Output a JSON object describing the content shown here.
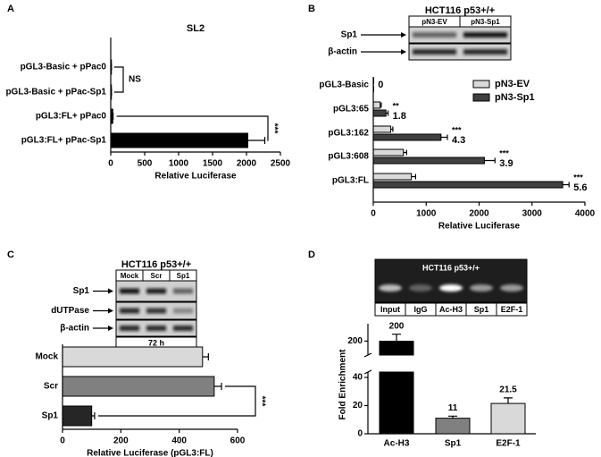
{
  "chart_data": [
    {
      "panel": "A",
      "type": "hbar",
      "title": "SL2",
      "categories": [
        "pGL3-Basic + pPac0",
        "pGL3-Basic + pPac-Sp1",
        "pGL3:FL+ pPac0",
        "pGL3:FL+ pPac-Sp1"
      ],
      "values": [
        10,
        10,
        30,
        2020
      ],
      "errors": [
        0,
        0,
        5,
        250
      ],
      "color": "#000000",
      "xlabel": "Relative Luciferase",
      "xlim": [
        0,
        2500
      ],
      "xticks": [
        0,
        500,
        1000,
        1500,
        2000,
        2500
      ],
      "ns_label": "NS",
      "sig_label": "***"
    },
    {
      "panel": "B",
      "type": "grouped-hbar",
      "blot": {
        "title": "HCT116 p53+/+",
        "lanes": [
          "pN3-EV",
          "pN3-Sp1"
        ],
        "rows": [
          "Sp1",
          "β-actin"
        ]
      },
      "categories": [
        "pGL3-Basic",
        "pGL3:65",
        "pGL3:162",
        "pGL3:608",
        "pGL3:FL"
      ],
      "series": [
        {
          "name": "pN3-EV",
          "color": "#d9d9d9",
          "values": [
            5,
            130,
            330,
            570,
            720
          ],
          "errors": [
            0,
            20,
            40,
            60,
            80
          ]
        },
        {
          "name": "pN3-Sp1",
          "color": "#404040",
          "values": [
            5,
            240,
            1280,
            2100,
            3580
          ],
          "errors": [
            0,
            40,
            120,
            200,
            120
          ]
        }
      ],
      "fold_change": [
        0,
        1.8,
        4.3,
        3.9,
        5.6
      ],
      "significance": [
        null,
        "**",
        "***",
        "***",
        "***"
      ],
      "xlabel": "Relative Luciferase",
      "xlim": [
        0,
        4000
      ],
      "xticks": [
        0,
        1000,
        2000,
        3000,
        4000
      ],
      "legend": "upper right"
    },
    {
      "panel": "C",
      "type": "hbar",
      "blot": {
        "title": "HCT116 p53+/+",
        "lanes": [
          "Mock",
          "Scr",
          "Sp1"
        ],
        "rows": [
          "Sp1",
          "dUTPase",
          "β-actin"
        ],
        "footer": "72 h"
      },
      "categories": [
        "Mock",
        "Scr",
        "Sp1"
      ],
      "values": [
        480,
        520,
        100
      ],
      "errors": [
        20,
        25,
        10
      ],
      "colors": [
        "#d9d9d9",
        "#808080",
        "#262626"
      ],
      "xlabel": "Relative Luciferase (pGL3:FL)",
      "xlim": [
        0,
        600
      ],
      "xticks": [
        0,
        200,
        400,
        600
      ],
      "sig_label": "***"
    },
    {
      "panel": "D",
      "type": "bar",
      "gel": {
        "title": "HCT116 p53+/+",
        "lanes": [
          "Input",
          "IgG",
          "Ac-H3",
          "Sp1",
          "E2F-1"
        ]
      },
      "categories": [
        "Ac-H3",
        "Sp1",
        "E2F-1"
      ],
      "values": [
        200,
        11,
        21.5
      ],
      "errors": [
        10,
        1.5,
        4
      ],
      "colors": [
        "#000000",
        "#808080",
        "#d9d9d9"
      ],
      "ylabel": "Fold Enrichment",
      "ylim": [
        0,
        225
      ],
      "ybreak": [
        40,
        180
      ],
      "yticks": [
        0,
        20,
        40,
        200
      ]
    }
  ]
}
